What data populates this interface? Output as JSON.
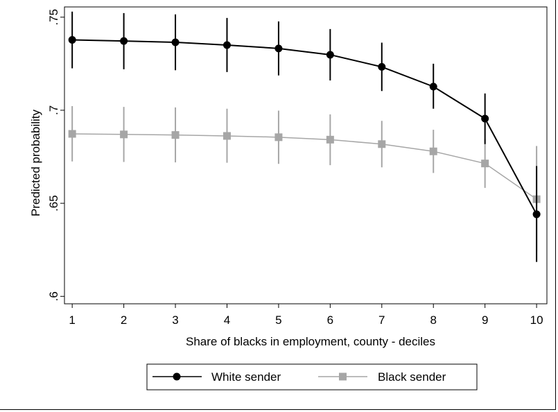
{
  "chart_data": {
    "type": "line",
    "title": "",
    "xlabel": "Share of blacks in employment, county - deciles",
    "ylabel": "Predicted probability",
    "x": [
      1,
      2,
      3,
      4,
      5,
      6,
      7,
      8,
      9,
      10
    ],
    "x_tick_labels": [
      "1",
      "2",
      "3",
      "4",
      "5",
      "6",
      "7",
      "8",
      "9",
      "10"
    ],
    "y_ticks": [
      0.6,
      0.65,
      0.7,
      0.75
    ],
    "y_tick_labels": [
      ".6",
      ".65",
      ".7",
      ".75"
    ],
    "xlim": [
      0.85,
      10.2
    ],
    "ylim": [
      0.596,
      0.7555
    ],
    "grid": false,
    "legend_position": "bottom",
    "series": [
      {
        "name": "White sender",
        "marker": "circle",
        "color": "#000000",
        "values": [
          0.7378,
          0.7372,
          0.7365,
          0.735,
          0.7332,
          0.7298,
          0.7233,
          0.7127,
          0.6955,
          0.6441
        ],
        "ci_low": [
          0.7225,
          0.722,
          0.7215,
          0.7205,
          0.7187,
          0.716,
          0.7103,
          0.7008,
          0.6818,
          0.6185
        ],
        "ci_high": [
          0.753,
          0.7522,
          0.7515,
          0.7496,
          0.7477,
          0.7436,
          0.7363,
          0.725,
          0.709,
          0.67
        ]
      },
      {
        "name": "Black sender",
        "marker": "square",
        "color": "#a6a6a6",
        "values": [
          0.6873,
          0.687,
          0.6867,
          0.6862,
          0.6855,
          0.6842,
          0.6818,
          0.6779,
          0.6714,
          0.6522
        ],
        "ci_low": [
          0.6725,
          0.6722,
          0.672,
          0.6718,
          0.6712,
          0.6705,
          0.6693,
          0.6663,
          0.6583,
          0.624
        ],
        "ci_high": [
          0.7022,
          0.7018,
          0.7015,
          0.7008,
          0.6998,
          0.6978,
          0.6943,
          0.6895,
          0.6845,
          0.6808
        ]
      }
    ]
  }
}
